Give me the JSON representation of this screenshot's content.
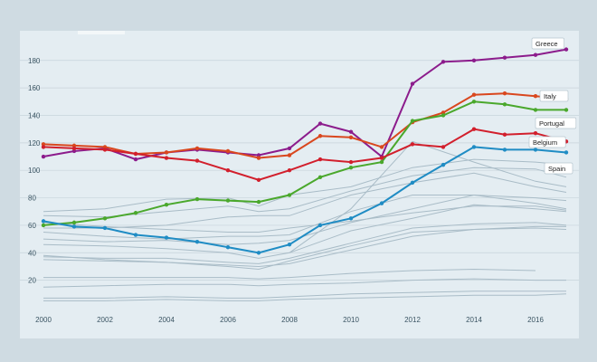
{
  "chart_data": {
    "type": "line",
    "title": "",
    "xlabel": "",
    "ylabel": "",
    "xlim": [
      2000,
      2017
    ],
    "ylim": [
      0,
      195
    ],
    "yticks": [
      20,
      40,
      60,
      80,
      100,
      120,
      140,
      160,
      180
    ],
    "xticks": [
      2000,
      2002,
      2004,
      2006,
      2008,
      2010,
      2012,
      2014,
      2016
    ],
    "grid": "horizontal",
    "colors": {
      "Greece": "#8c1c8c",
      "Italy": "#d9471e",
      "Portugal": "#d21f2c",
      "Belgium": "#d21f2c",
      "Spain": "#1f8cc4",
      "green": "#4aa82c",
      "background": "#e4edf2",
      "grid": "#c7d4db",
      "others": "#a9bcc7"
    },
    "series": [
      {
        "name": "Greece",
        "x": [
          2000,
          2001,
          2002,
          2003,
          2004,
          2005,
          2006,
          2007,
          2008,
          2009,
          2010,
          2011,
          2012,
          2013,
          2014,
          2015,
          2016,
          2017
        ],
        "values": [
          110,
          114,
          116,
          108,
          113,
          115,
          113,
          111,
          116,
          134,
          128,
          110,
          163,
          179,
          180,
          182,
          184,
          188
        ]
      },
      {
        "name": "Italy",
        "x": [
          2000,
          2001,
          2002,
          2003,
          2004,
          2005,
          2006,
          2007,
          2008,
          2009,
          2010,
          2011,
          2012,
          2013,
          2014,
          2015,
          2016,
          2017
        ],
        "values": [
          119,
          118,
          117,
          112,
          113,
          116,
          114,
          109,
          111,
          125,
          124,
          117,
          135,
          142,
          155,
          156,
          154,
          152
        ]
      },
      {
        "name": "",
        "x": [
          2000,
          2001,
          2002,
          2003,
          2004,
          2005,
          2006,
          2007,
          2008,
          2009,
          2010,
          2011,
          2012,
          2013,
          2014,
          2015,
          2016,
          2017
        ],
        "values": [
          60,
          62,
          65,
          69,
          75,
          79,
          78,
          77,
          82,
          95,
          102,
          106,
          136,
          140,
          150,
          148,
          144,
          144
        ]
      },
      {
        "name": "Portugal",
        "x": [
          2000,
          2001,
          2002,
          2003,
          2004,
          2005,
          2006,
          2007,
          2008,
          2009,
          2010,
          2011,
          2012,
          2013,
          2014,
          2015,
          2016,
          2017
        ],
        "values": [
          117,
          116,
          115,
          112,
          109,
          107,
          100,
          93,
          100,
          108,
          106,
          109,
          119,
          117,
          130,
          126,
          127,
          121
        ]
      },
      {
        "name": "Spain",
        "x": [
          2000,
          2001,
          2002,
          2003,
          2004,
          2005,
          2006,
          2007,
          2008,
          2009,
          2010,
          2011,
          2012,
          2013,
          2014,
          2015,
          2016,
          2017
        ],
        "values": [
          63,
          59,
          58,
          53,
          51,
          48,
          44,
          40,
          46,
          60,
          65,
          76,
          91,
          104,
          117,
          115,
          115,
          113
        ]
      }
    ],
    "background_series": [
      {
        "x": [
          2000,
          2002,
          2004,
          2006,
          2007,
          2008,
          2010,
          2012,
          2014,
          2016,
          2017
        ],
        "values": [
          70,
          72,
          79,
          80,
          74,
          82,
          88,
          102,
          108,
          106,
          104
        ]
      },
      {
        "x": [
          2000,
          2002,
          2004,
          2006,
          2007,
          2008,
          2010,
          2012,
          2014,
          2016,
          2017
        ],
        "values": [
          67,
          66,
          70,
          74,
          70,
          72,
          85,
          96,
          102,
          101,
          95
        ]
      },
      {
        "x": [
          2000,
          2002,
          2004,
          2006,
          2007,
          2008,
          2010,
          2012,
          2014,
          2016,
          2017
        ],
        "values": [
          58,
          58,
          60,
          66,
          67,
          67,
          82,
          91,
          98,
          88,
          84
        ]
      },
      {
        "x": [
          2000,
          2002,
          2004,
          2006,
          2007,
          2008,
          2010,
          2012,
          2014,
          2016,
          2017
        ],
        "values": [
          55,
          52,
          50,
          52,
          52,
          53,
          70,
          82,
          82,
          80,
          78
        ]
      },
      {
        "x": [
          2000,
          2002,
          2004,
          2006,
          2007,
          2008,
          2010,
          2012,
          2014,
          2016,
          2017
        ],
        "values": [
          50,
          48,
          49,
          46,
          47,
          49,
          62,
          72,
          82,
          76,
          72
        ]
      },
      {
        "x": [
          2000,
          2002,
          2004,
          2006,
          2007,
          2008,
          2010,
          2012,
          2014,
          2016,
          2017
        ],
        "values": [
          46,
          45,
          43,
          40,
          36,
          40,
          56,
          65,
          75,
          72,
          70
        ]
      },
      {
        "x": [
          2000,
          2002,
          2004,
          2006,
          2007,
          2008,
          2010,
          2012,
          2014,
          2016,
          2017
        ],
        "values": [
          37,
          36,
          36,
          33,
          32,
          36,
          47,
          58,
          61,
          62,
          60
        ]
      },
      {
        "x": [
          2000,
          2002,
          2004,
          2006,
          2007,
          2008,
          2010,
          2012,
          2014,
          2016,
          2017
        ],
        "values": [
          38,
          35,
          33,
          30,
          28,
          34,
          45,
          55,
          57,
          58,
          57
        ]
      },
      {
        "x": [
          2000,
          2002,
          2004,
          2006,
          2007,
          2008,
          2010,
          2012,
          2014,
          2016,
          2017
        ],
        "values": [
          62,
          59,
          57,
          55,
          55,
          58,
          63,
          69,
          74,
          74,
          71
        ]
      },
      {
        "x": [
          2000,
          2002,
          2004,
          2006,
          2007,
          2008,
          2010,
          2012,
          2014,
          2016,
          2017
        ],
        "values": [
          35,
          34,
          33,
          31,
          30,
          32,
          42,
          52,
          57,
          59,
          59
        ]
      },
      {
        "x": [
          2000,
          2002,
          2004,
          2006,
          2007,
          2008,
          2010,
          2012,
          2014,
          2016
        ],
        "values": [
          22,
          22,
          22,
          22,
          21,
          22,
          25,
          27,
          28,
          27
        ]
      },
      {
        "x": [
          2000,
          2002,
          2004,
          2006,
          2007,
          2008,
          2010,
          2012,
          2014,
          2016,
          2017
        ],
        "values": [
          15,
          16,
          17,
          17,
          16,
          17,
          18,
          20,
          21,
          20,
          20
        ]
      },
      {
        "x": [
          2000,
          2002,
          2004,
          2006,
          2007,
          2008,
          2010,
          2012,
          2014,
          2016,
          2017
        ],
        "values": [
          7,
          7,
          8,
          7,
          7,
          8,
          10,
          11,
          12,
          12,
          12
        ]
      },
      {
        "x": [
          2000,
          2002,
          2004,
          2006,
          2007,
          2008,
          2010,
          2012,
          2014,
          2016,
          2017
        ],
        "values": [
          5,
          5,
          6,
          5,
          5,
          6,
          7,
          8,
          9,
          9,
          10
        ]
      },
      {
        "x": [
          2008,
          2010,
          2012,
          2014,
          2016,
          2017
        ],
        "values": [
          40,
          72,
          121,
          106,
          92,
          88
        ]
      }
    ],
    "labels": [
      {
        "text": "Greece",
        "series": 0
      },
      {
        "text": "Italy",
        "series": 1
      },
      {
        "text": "Portugal",
        "series": 3
      },
      {
        "text": "Belgium",
        "series": 3
      },
      {
        "text": "Spain",
        "series": 4
      }
    ]
  }
}
